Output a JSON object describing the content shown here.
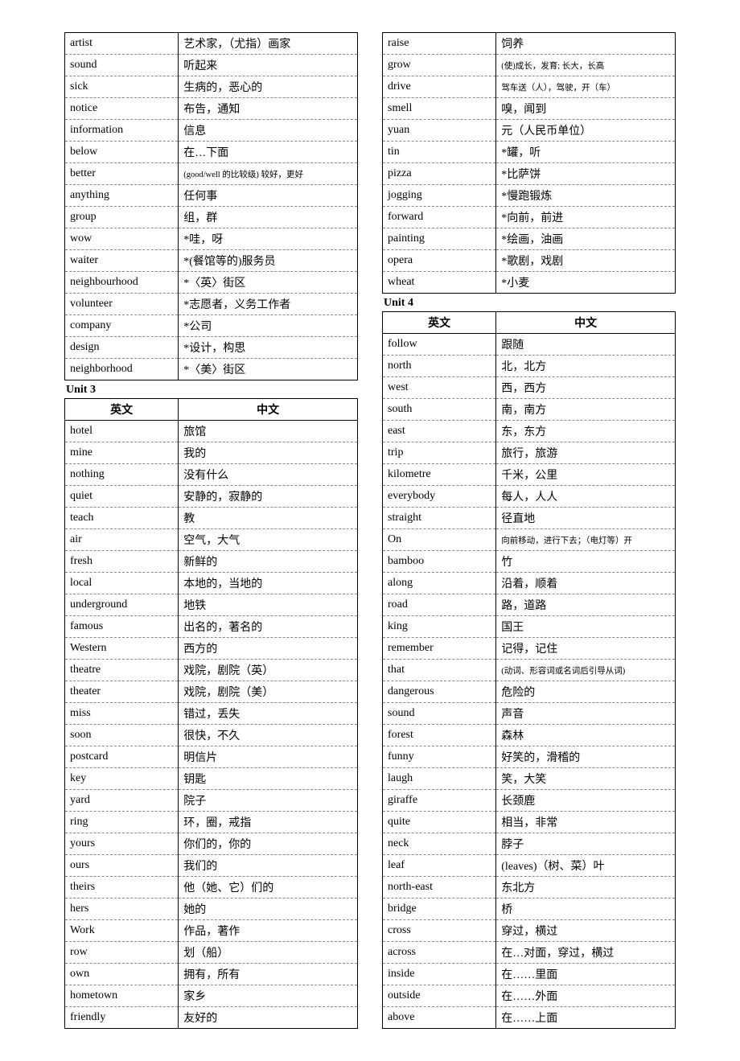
{
  "headers": {
    "en": "英文",
    "cn": "中文"
  },
  "unit3_label": "Unit 3",
  "unit4_label": "Unit 4",
  "left_block1": [
    {
      "en": "artist",
      "cn": "艺术家，（尤指）画家"
    },
    {
      "en": "sound",
      "cn": "听起来"
    },
    {
      "en": "sick",
      "cn": "生病的，恶心的"
    },
    {
      "en": "notice",
      "cn": "布告，通知"
    },
    {
      "en": "information",
      "cn": "信息"
    },
    {
      "en": "below",
      "cn": "在…下面"
    },
    {
      "en": "better",
      "cn": "(good/well 的比较级) 较好，更好",
      "small": true
    },
    {
      "en": "anything",
      "cn": "任何事"
    },
    {
      "en": "group",
      "cn": "组，群"
    },
    {
      "en": "wow",
      "cn": "*哇，呀"
    },
    {
      "en": "waiter",
      "cn": "*(餐馆等的)服务员"
    },
    {
      "en": "neighbourhood",
      "cn": "*〈英〉街区"
    },
    {
      "en": "volunteer",
      "cn": "*志愿者，义务工作者"
    },
    {
      "en": "company",
      "cn": "*公司"
    },
    {
      "en": "design",
      "cn": "*设计，构思"
    },
    {
      "en": "neighborhood",
      "cn": "*〈美〉街区"
    }
  ],
  "left_block2": [
    {
      "en": "hotel",
      "cn": "旅馆"
    },
    {
      "en": "mine",
      "cn": "我的"
    },
    {
      "en": "nothing",
      "cn": "没有什么"
    },
    {
      "en": "quiet",
      "cn": "安静的，寂静的"
    },
    {
      "en": "teach",
      "cn": "教"
    },
    {
      "en": "air",
      "cn": "空气，大气"
    },
    {
      "en": "fresh",
      "cn": "新鲜的"
    },
    {
      "en": "local",
      "cn": "本地的，当地的"
    },
    {
      "en": "underground",
      "cn": "地铁"
    },
    {
      "en": "famous",
      "cn": "出名的，著名的"
    },
    {
      "en": "Western",
      "cn": "西方的"
    },
    {
      "en": "theatre",
      "cn": "戏院，剧院（英）"
    },
    {
      "en": "theater",
      "cn": "戏院，剧院（美）"
    },
    {
      "en": "miss",
      "cn": "错过，丢失"
    },
    {
      "en": "soon",
      "cn": "很快，不久"
    },
    {
      "en": "postcard",
      "cn": "明信片"
    },
    {
      "en": "key",
      "cn": "钥匙"
    },
    {
      "en": "yard",
      "cn": "院子"
    },
    {
      "en": "ring",
      "cn": "环，圈，戒指"
    },
    {
      "en": "yours",
      "cn": "你们的，你的"
    },
    {
      "en": "ours",
      "cn": "我们的"
    },
    {
      "en": "theirs",
      "cn": "他（她、它）们的"
    },
    {
      "en": "hers",
      "cn": "她的"
    },
    {
      "en": "Work",
      "cn": "作品，著作"
    },
    {
      "en": "row",
      "cn": "划（船）"
    },
    {
      "en": "own",
      "cn": "拥有，所有"
    },
    {
      "en": "hometown",
      "cn": "家乡"
    },
    {
      "en": "friendly",
      "cn": "友好的"
    }
  ],
  "right_block1": [
    {
      "en": "raise",
      "cn": "饲养"
    },
    {
      "en": "grow",
      "cn": "(使)成长，发育; 长大，长高",
      "small": true
    },
    {
      "en": "drive",
      "cn": "驾车送（人），驾驶，开（车）",
      "small": true
    },
    {
      "en": "smell",
      "cn": "嗅，闻到"
    },
    {
      "en": "yuan",
      "cn": "元（人民币单位）"
    },
    {
      "en": "tin",
      "cn": "*罐，听"
    },
    {
      "en": "pizza",
      "cn": "*比萨饼"
    },
    {
      "en": "jogging",
      "cn": "*慢跑锻炼"
    },
    {
      "en": " forward",
      "cn": "*向前，前进"
    },
    {
      "en": "painting",
      "cn": "*绘画，油画"
    },
    {
      "en": "opera",
      "cn": "*歌剧，戏剧"
    },
    {
      "en": "wheat",
      "cn": "*小麦"
    }
  ],
  "right_block2": [
    {
      "en": "follow",
      "cn": "跟随"
    },
    {
      "en": "north",
      "cn": "北，北方"
    },
    {
      "en": "west",
      "cn": "西，西方"
    },
    {
      "en": "south",
      "cn": "南，南方"
    },
    {
      "en": "east",
      "cn": "东，东方"
    },
    {
      "en": "trip",
      "cn": "旅行，旅游"
    },
    {
      "en": "kilometre",
      "cn": "千米，公里"
    },
    {
      "en": "everybody",
      "cn": "每人，人人"
    },
    {
      "en": "straight",
      "cn": "径直地"
    },
    {
      "en": "On",
      "cn": "向前移动，进行下去；（电灯等）开",
      "small": true
    },
    {
      "en": "bamboo",
      "cn": "竹"
    },
    {
      "en": "along",
      "cn": "沿着，顺着"
    },
    {
      "en": "road",
      "cn": "路，道路"
    },
    {
      "en": "king",
      "cn": "国王"
    },
    {
      "en": "remember",
      "cn": "记得，记住"
    },
    {
      "en": "that",
      "cn": "(动词、形容词或名词后引导从词)",
      "small": true
    },
    {
      "en": "dangerous",
      "cn": "危险的"
    },
    {
      "en": "sound",
      "cn": "声音"
    },
    {
      "en": "forest",
      "cn": "森林"
    },
    {
      "en": "funny",
      "cn": "好笑的，滑稽的"
    },
    {
      "en": "laugh",
      "cn": "笑，大笑"
    },
    {
      "en": "giraffe",
      "cn": "长颈鹿"
    },
    {
      "en": "quite",
      "cn": "相当，非常"
    },
    {
      "en": "neck",
      "cn": "脖子"
    },
    {
      "en": "leaf",
      "cn": "(leaves)（树、菜）叶"
    },
    {
      "en": "north-east",
      "cn": "东北方"
    },
    {
      "en": "bridge",
      "cn": "桥"
    },
    {
      "en": "cross",
      "cn": "穿过，横过"
    },
    {
      "en": "across",
      "cn": "在…对面，穿过，横过"
    },
    {
      "en": "inside",
      "cn": "在……里面"
    },
    {
      "en": "outside",
      "cn": "在……外面"
    },
    {
      "en": "above",
      "cn": "在……上面"
    }
  ]
}
